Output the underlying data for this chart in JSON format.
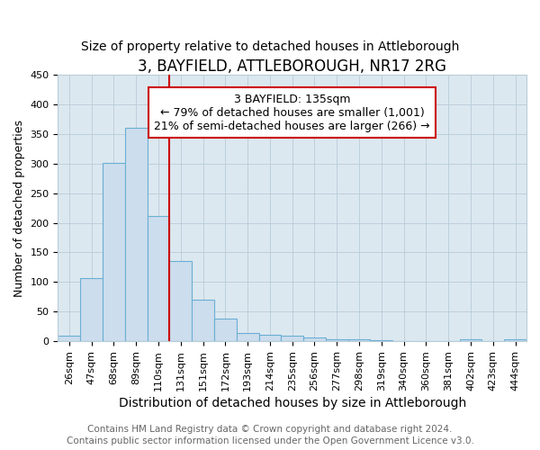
{
  "title": "3, BAYFIELD, ATTLEBOROUGH, NR17 2RG",
  "subtitle": "Size of property relative to detached houses in Attleborough",
  "xlabel": "Distribution of detached houses by size in Attleborough",
  "ylabel": "Number of detached properties",
  "categories": [
    "26sqm",
    "47sqm",
    "68sqm",
    "89sqm",
    "110sqm",
    "131sqm",
    "151sqm",
    "172sqm",
    "193sqm",
    "214sqm",
    "235sqm",
    "256sqm",
    "277sqm",
    "298sqm",
    "319sqm",
    "340sqm",
    "360sqm",
    "381sqm",
    "402sqm",
    "423sqm",
    "444sqm"
  ],
  "values": [
    9,
    107,
    301,
    360,
    212,
    135,
    70,
    38,
    14,
    11,
    9,
    6,
    3,
    3,
    2,
    0,
    0,
    0,
    4,
    0,
    4
  ],
  "bar_color": "#ccdded",
  "bar_edgecolor": "#6aafd4",
  "vline_color": "#cc0000",
  "vline_index": 5,
  "annotation_text": "3 BAYFIELD: 135sqm\n← 79% of detached houses are smaller (1,001)\n21% of semi-detached houses are larger (266) →",
  "annotation_box_facecolor": "#ffffff",
  "annotation_box_edgecolor": "#cc0000",
  "ylim": [
    0,
    450
  ],
  "yticks": [
    0,
    50,
    100,
    150,
    200,
    250,
    300,
    350,
    400,
    450
  ],
  "fig_bg_color": "#ffffff",
  "plot_bg_color": "#dce8f0",
  "grid_color": "#b8ccd8",
  "title_fontsize": 12,
  "subtitle_fontsize": 10,
  "xlabel_fontsize": 10,
  "ylabel_fontsize": 9,
  "tick_fontsize": 8,
  "footer_fontsize": 7.5,
  "footer1": "Contains HM Land Registry data © Crown copyright and database right 2024.",
  "footer2": "Contains public sector information licensed under the Open Government Licence v3.0."
}
